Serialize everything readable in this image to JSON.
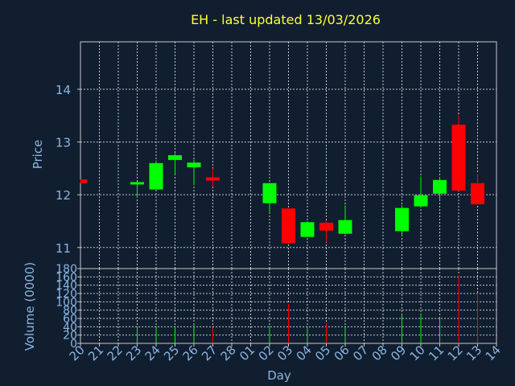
{
  "colors": {
    "up": "#00ff00",
    "down": "#ff0000",
    "text": "#8ab6e0",
    "title": "#ffff33",
    "background": "#111e30",
    "grid": "#c8c8c8"
  },
  "chart_data": {
    "type": "candlestick",
    "title": "EH - last updated 13/03/2026",
    "xlabel": "Day",
    "ylabel": "Price",
    "volume_label": "Volume (0000)",
    "grid": true,
    "categories": [
      "20",
      "21",
      "22",
      "23",
      "24",
      "25",
      "26",
      "27",
      "28",
      "01",
      "02",
      "03",
      "04",
      "05",
      "06",
      "07",
      "08",
      "09",
      "10",
      "11",
      "12",
      "13",
      "14"
    ],
    "price_ticks": [
      11,
      12,
      13,
      14
    ],
    "price_ylim": [
      10.6,
      14.9
    ],
    "volume_ticks": [
      0,
      20,
      40,
      60,
      80,
      100,
      120,
      140,
      160,
      180
    ],
    "volume_ylim": [
      0,
      180
    ],
    "candles": [
      {
        "day": "20",
        "open": 12.29,
        "high": 12.29,
        "low": 12.22,
        "close": 12.22,
        "volume": 0
      },
      {
        "day": "23",
        "open": 12.21,
        "high": 12.25,
        "low": 11.94,
        "close": 12.24,
        "volume": 40
      },
      {
        "day": "24",
        "open": 12.1,
        "high": 12.65,
        "low": 12.1,
        "close": 12.6,
        "volume": 42
      },
      {
        "day": "25",
        "open": 12.66,
        "high": 12.79,
        "low": 12.38,
        "close": 12.75,
        "volume": 42
      },
      {
        "day": "26",
        "open": 12.52,
        "high": 12.66,
        "low": 12.18,
        "close": 12.61,
        "volume": 46
      },
      {
        "day": "27",
        "open": 12.33,
        "high": 12.5,
        "low": 12.15,
        "close": 12.27,
        "volume": 38
      },
      {
        "day": "02",
        "open": 11.84,
        "high": 12.22,
        "low": 11.65,
        "close": 12.22,
        "volume": 42
      },
      {
        "day": "03",
        "open": 11.74,
        "high": 11.74,
        "low": 11.07,
        "close": 11.08,
        "volume": 95
      },
      {
        "day": "04",
        "open": 11.2,
        "high": 11.5,
        "low": 11.2,
        "close": 11.48,
        "volume": 40
      },
      {
        "day": "05",
        "open": 11.47,
        "high": 11.5,
        "low": 11.1,
        "close": 11.32,
        "volume": 48
      },
      {
        "day": "06",
        "open": 11.26,
        "high": 11.8,
        "low": 11.25,
        "close": 11.52,
        "volume": 42
      },
      {
        "day": "09",
        "open": 11.31,
        "high": 11.8,
        "low": 11.22,
        "close": 11.75,
        "volume": 70
      },
      {
        "day": "10",
        "open": 11.78,
        "high": 12.35,
        "low": 11.78,
        "close": 11.99,
        "volume": 70
      },
      {
        "day": "11",
        "open": 12.02,
        "high": 12.33,
        "low": 11.9,
        "close": 12.28,
        "volume": 63
      },
      {
        "day": "12",
        "open": 13.33,
        "high": 13.52,
        "low": 12.08,
        "close": 12.08,
        "volume": 165
      },
      {
        "day": "13",
        "open": 12.22,
        "high": 12.4,
        "low": 11.82,
        "close": 11.82,
        "volume": 120
      }
    ]
  }
}
